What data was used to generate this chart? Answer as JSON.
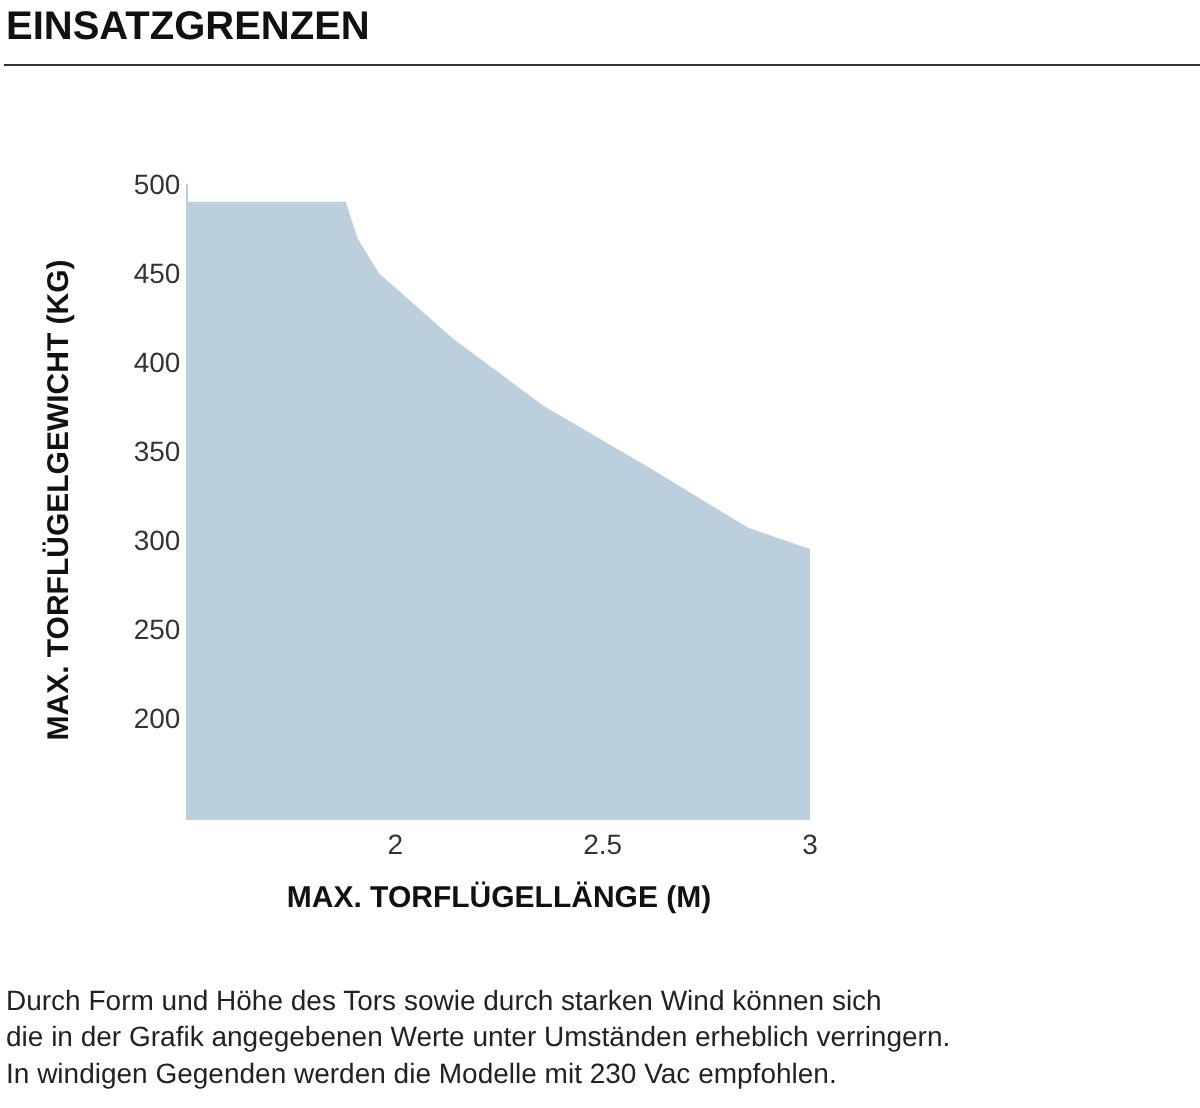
{
  "chart_data": {
    "type": "area",
    "title": "EINSATZGRENZEN",
    "xlabel": "MAX. TORFLÜGELLÄNGE (M)",
    "ylabel": "MAX. TORFLÜGELGEWICHT (KG)",
    "annotations": [
      "Durch Form und Höhe des Tors sowie durch starken Wind können sich\ndie in der Grafik angegebenen Werte unter Umständen erheblich verringern.\nIn windigen Gegenden werden die Modelle mit 230 Vac empfohlen."
    ],
    "x": [
      1.5,
      1.88,
      1.91,
      1.96,
      2.14,
      2.36,
      2.61,
      2.85,
      3
    ],
    "series": [
      {
        "color": "#bccfdc",
        "values": [
          490,
          490,
          469,
          450,
          413,
          375,
          341,
          307,
          295
        ]
      }
    ],
    "xlim": [
      1.5,
      3
    ],
    "xticks": [
      2,
      2.5,
      3
    ],
    "ylim": [
      145,
      500
    ],
    "yticks": [
      200,
      250,
      300,
      350,
      400,
      450,
      500
    ],
    "grid": false,
    "legend": false
  }
}
